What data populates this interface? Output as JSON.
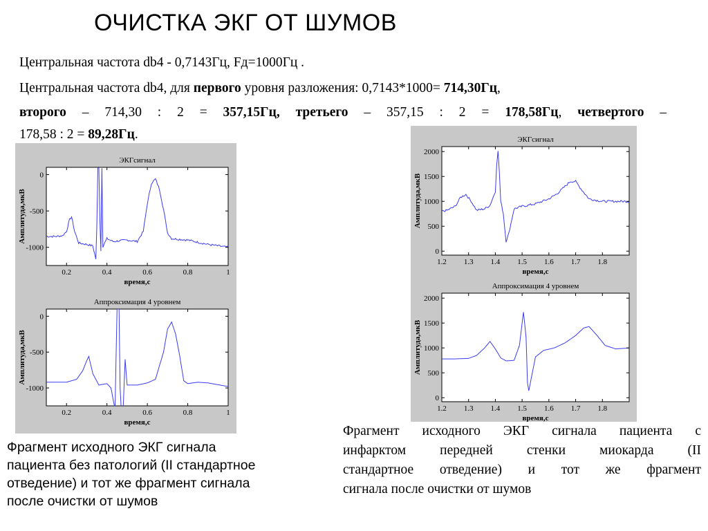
{
  "slide": {
    "title": "ОЧИСТКА ЭКГ ОТ ШУМОВ",
    "line1": "Центральная частота db4 - 0,7143Гц, Fд=1000Гц .",
    "line2": {
      "a": "Центральная частота db4, для ",
      "b": "первого",
      "c": " уровня разложения: 0,7143*1000= ",
      "d": "714,30Гц",
      "e": ","
    },
    "line3": {
      "a": "второго",
      "b": "–",
      "c": "714,30",
      "d": ":",
      "e": "2",
      "f": "=",
      "g": "357,15Гц,",
      "h": "третьего",
      "i": "–",
      "j": "357,15",
      "k": ":",
      "l": "2",
      "m": "=",
      "n": "178,58Гц",
      "o": ",",
      "p": "четвертого",
      "q": "–"
    },
    "line4": {
      "a": "178,58 : 2 = ",
      "b": "89,28Гц",
      "c": "."
    },
    "caption_left": [
      "Фрагмент исходного ЭКГ сигнала",
      "пациента без патологий (II стандартное",
      "отведение) и тот же фрагмент сигнала",
      "после очистки от шумов"
    ],
    "caption_right": [
      "Фрагмент исходного ЭКГ сигнала пациента с",
      "инфарктом передней стенки миокарда (II",
      "стандартное отведение) и тот же фрагмент",
      "сигнала после очистки от шумов"
    ]
  },
  "style": {
    "line_color": "#3a3af0",
    "panel_bg": "#c8c8c8"
  },
  "chart_data": [
    {
      "type": "line",
      "title": "ЭКГсигнал",
      "xlabel": "время,с",
      "ylabel": "Амплитуда,мкВ",
      "xlim": [
        0.1,
        1.0
      ],
      "ylim": [
        -1250,
        100
      ],
      "xticks": [
        "0.2",
        "0.4",
        "0.6",
        "0.8",
        "1"
      ],
      "xtick_values": [
        0.2,
        0.4,
        0.6,
        0.8,
        1.0
      ],
      "yticks": [
        "0",
        "-500",
        "-1000"
      ],
      "ytick_values": [
        0,
        -500,
        -1000
      ],
      "grid": false,
      "noise": 14,
      "x": [
        0.1,
        0.15,
        0.18,
        0.2,
        0.215,
        0.225,
        0.24,
        0.26,
        0.3,
        0.33,
        0.345,
        0.35,
        0.355,
        0.36,
        0.365,
        0.37,
        0.375,
        0.38,
        0.4,
        0.43,
        0.5,
        0.55,
        0.58,
        0.6,
        0.62,
        0.64,
        0.66,
        0.68,
        0.7,
        0.72,
        0.8,
        0.9,
        1.0
      ],
      "y": [
        -850,
        -850,
        -840,
        -780,
        -620,
        -580,
        -780,
        -940,
        -960,
        -980,
        -1160,
        -700,
        100,
        100,
        -600,
        -1050,
        100,
        -990,
        -880,
        -920,
        -900,
        -920,
        -780,
        -400,
        -120,
        -60,
        -200,
        -480,
        -800,
        -880,
        -900,
        -960,
        -1000
      ]
    },
    {
      "type": "line",
      "title": "Аппроксимация 4 уровнем",
      "xlabel": "время,с",
      "ylabel": "Амплитуда,мкВ",
      "xlim": [
        0.1,
        1.0
      ],
      "ylim": [
        -1250,
        100
      ],
      "xticks": [
        "0.2",
        "0.4",
        "0.6",
        "0.8",
        "1"
      ],
      "xtick_values": [
        0.2,
        0.4,
        0.6,
        0.8,
        1.0
      ],
      "yticks": [
        "0",
        "-500",
        "-1000"
      ],
      "ytick_values": [
        0,
        -500,
        -1000
      ],
      "grid": false,
      "noise": 0,
      "x": [
        0.1,
        0.15,
        0.2,
        0.25,
        0.28,
        0.3,
        0.31,
        0.33,
        0.36,
        0.4,
        0.42,
        0.43,
        0.44,
        0.445,
        0.45,
        0.46,
        0.465,
        0.47,
        0.48,
        0.49,
        0.5,
        0.55,
        0.6,
        0.64,
        0.68,
        0.7,
        0.72,
        0.74,
        0.76,
        0.78,
        0.8,
        0.85,
        0.9,
        1.0
      ],
      "y": [
        -920,
        -920,
        -920,
        -880,
        -760,
        -620,
        -560,
        -800,
        -960,
        -940,
        -1000,
        -1150,
        -1300,
        -600,
        100,
        100,
        -1000,
        -1250,
        -1320,
        -600,
        -960,
        -960,
        -930,
        -880,
        -500,
        -180,
        -80,
        -250,
        -550,
        -900,
        -940,
        -920,
        -930,
        -980
      ]
    },
    {
      "type": "line",
      "title": "ЭКГсигнал",
      "xlabel": "время,с",
      "ylabel": "Амплитуда,мкВ",
      "xlim": [
        1.2,
        1.9
      ],
      "ylim": [
        -80,
        2100
      ],
      "xticks": [
        "1.2",
        "1.3",
        "1.4",
        "1.5",
        "1.6",
        "1.7",
        "1.8"
      ],
      "xtick_values": [
        1.2,
        1.3,
        1.4,
        1.5,
        1.6,
        1.7,
        1.8
      ],
      "yticks": [
        "2000",
        "1500",
        "1000",
        "500",
        "0"
      ],
      "ytick_values": [
        2000,
        1500,
        1000,
        500,
        0
      ],
      "grid": false,
      "noise": 22,
      "x": [
        1.2,
        1.22,
        1.25,
        1.27,
        1.29,
        1.31,
        1.33,
        1.36,
        1.38,
        1.4,
        1.405,
        1.41,
        1.415,
        1.42,
        1.43,
        1.44,
        1.45,
        1.47,
        1.5,
        1.55,
        1.6,
        1.63,
        1.66,
        1.68,
        1.7,
        1.72,
        1.75,
        1.8,
        1.85,
        1.9
      ],
      "y": [
        800,
        820,
        900,
        1080,
        1140,
        1000,
        820,
        850,
        920,
        1200,
        1750,
        2000,
        1600,
        1000,
        750,
        200,
        350,
        850,
        900,
        950,
        1050,
        1150,
        1300,
        1400,
        1400,
        1250,
        1050,
        1000,
        1000,
        1000
      ]
    },
    {
      "type": "line",
      "title": "Аппроксимация 4 уровнем",
      "xlabel": "время,с",
      "ylabel": "Амплитуда,мкВ",
      "xlim": [
        1.2,
        1.9
      ],
      "ylim": [
        -80,
        2100
      ],
      "xticks": [
        "1.2",
        "1.3",
        "1.4",
        "1.5",
        "1.6",
        "1.7",
        "1.8"
      ],
      "xtick_values": [
        1.2,
        1.3,
        1.4,
        1.5,
        1.6,
        1.7,
        1.8
      ],
      "yticks": [
        "2000",
        "1500",
        "1000",
        "500",
        "0"
      ],
      "ytick_values": [
        2000,
        1500,
        1000,
        500,
        0
      ],
      "grid": false,
      "noise": 0,
      "x": [
        1.2,
        1.25,
        1.3,
        1.33,
        1.36,
        1.38,
        1.4,
        1.42,
        1.44,
        1.47,
        1.49,
        1.505,
        1.515,
        1.52,
        1.525,
        1.53,
        1.55,
        1.58,
        1.62,
        1.66,
        1.7,
        1.73,
        1.75,
        1.78,
        1.81,
        1.85,
        1.9
      ],
      "y": [
        780,
        780,
        790,
        850,
        1000,
        1130,
        980,
        800,
        740,
        750,
        1050,
        1720,
        1200,
        300,
        140,
        280,
        820,
        950,
        1000,
        1100,
        1250,
        1400,
        1430,
        1250,
        1050,
        980,
        1000
      ]
    }
  ]
}
